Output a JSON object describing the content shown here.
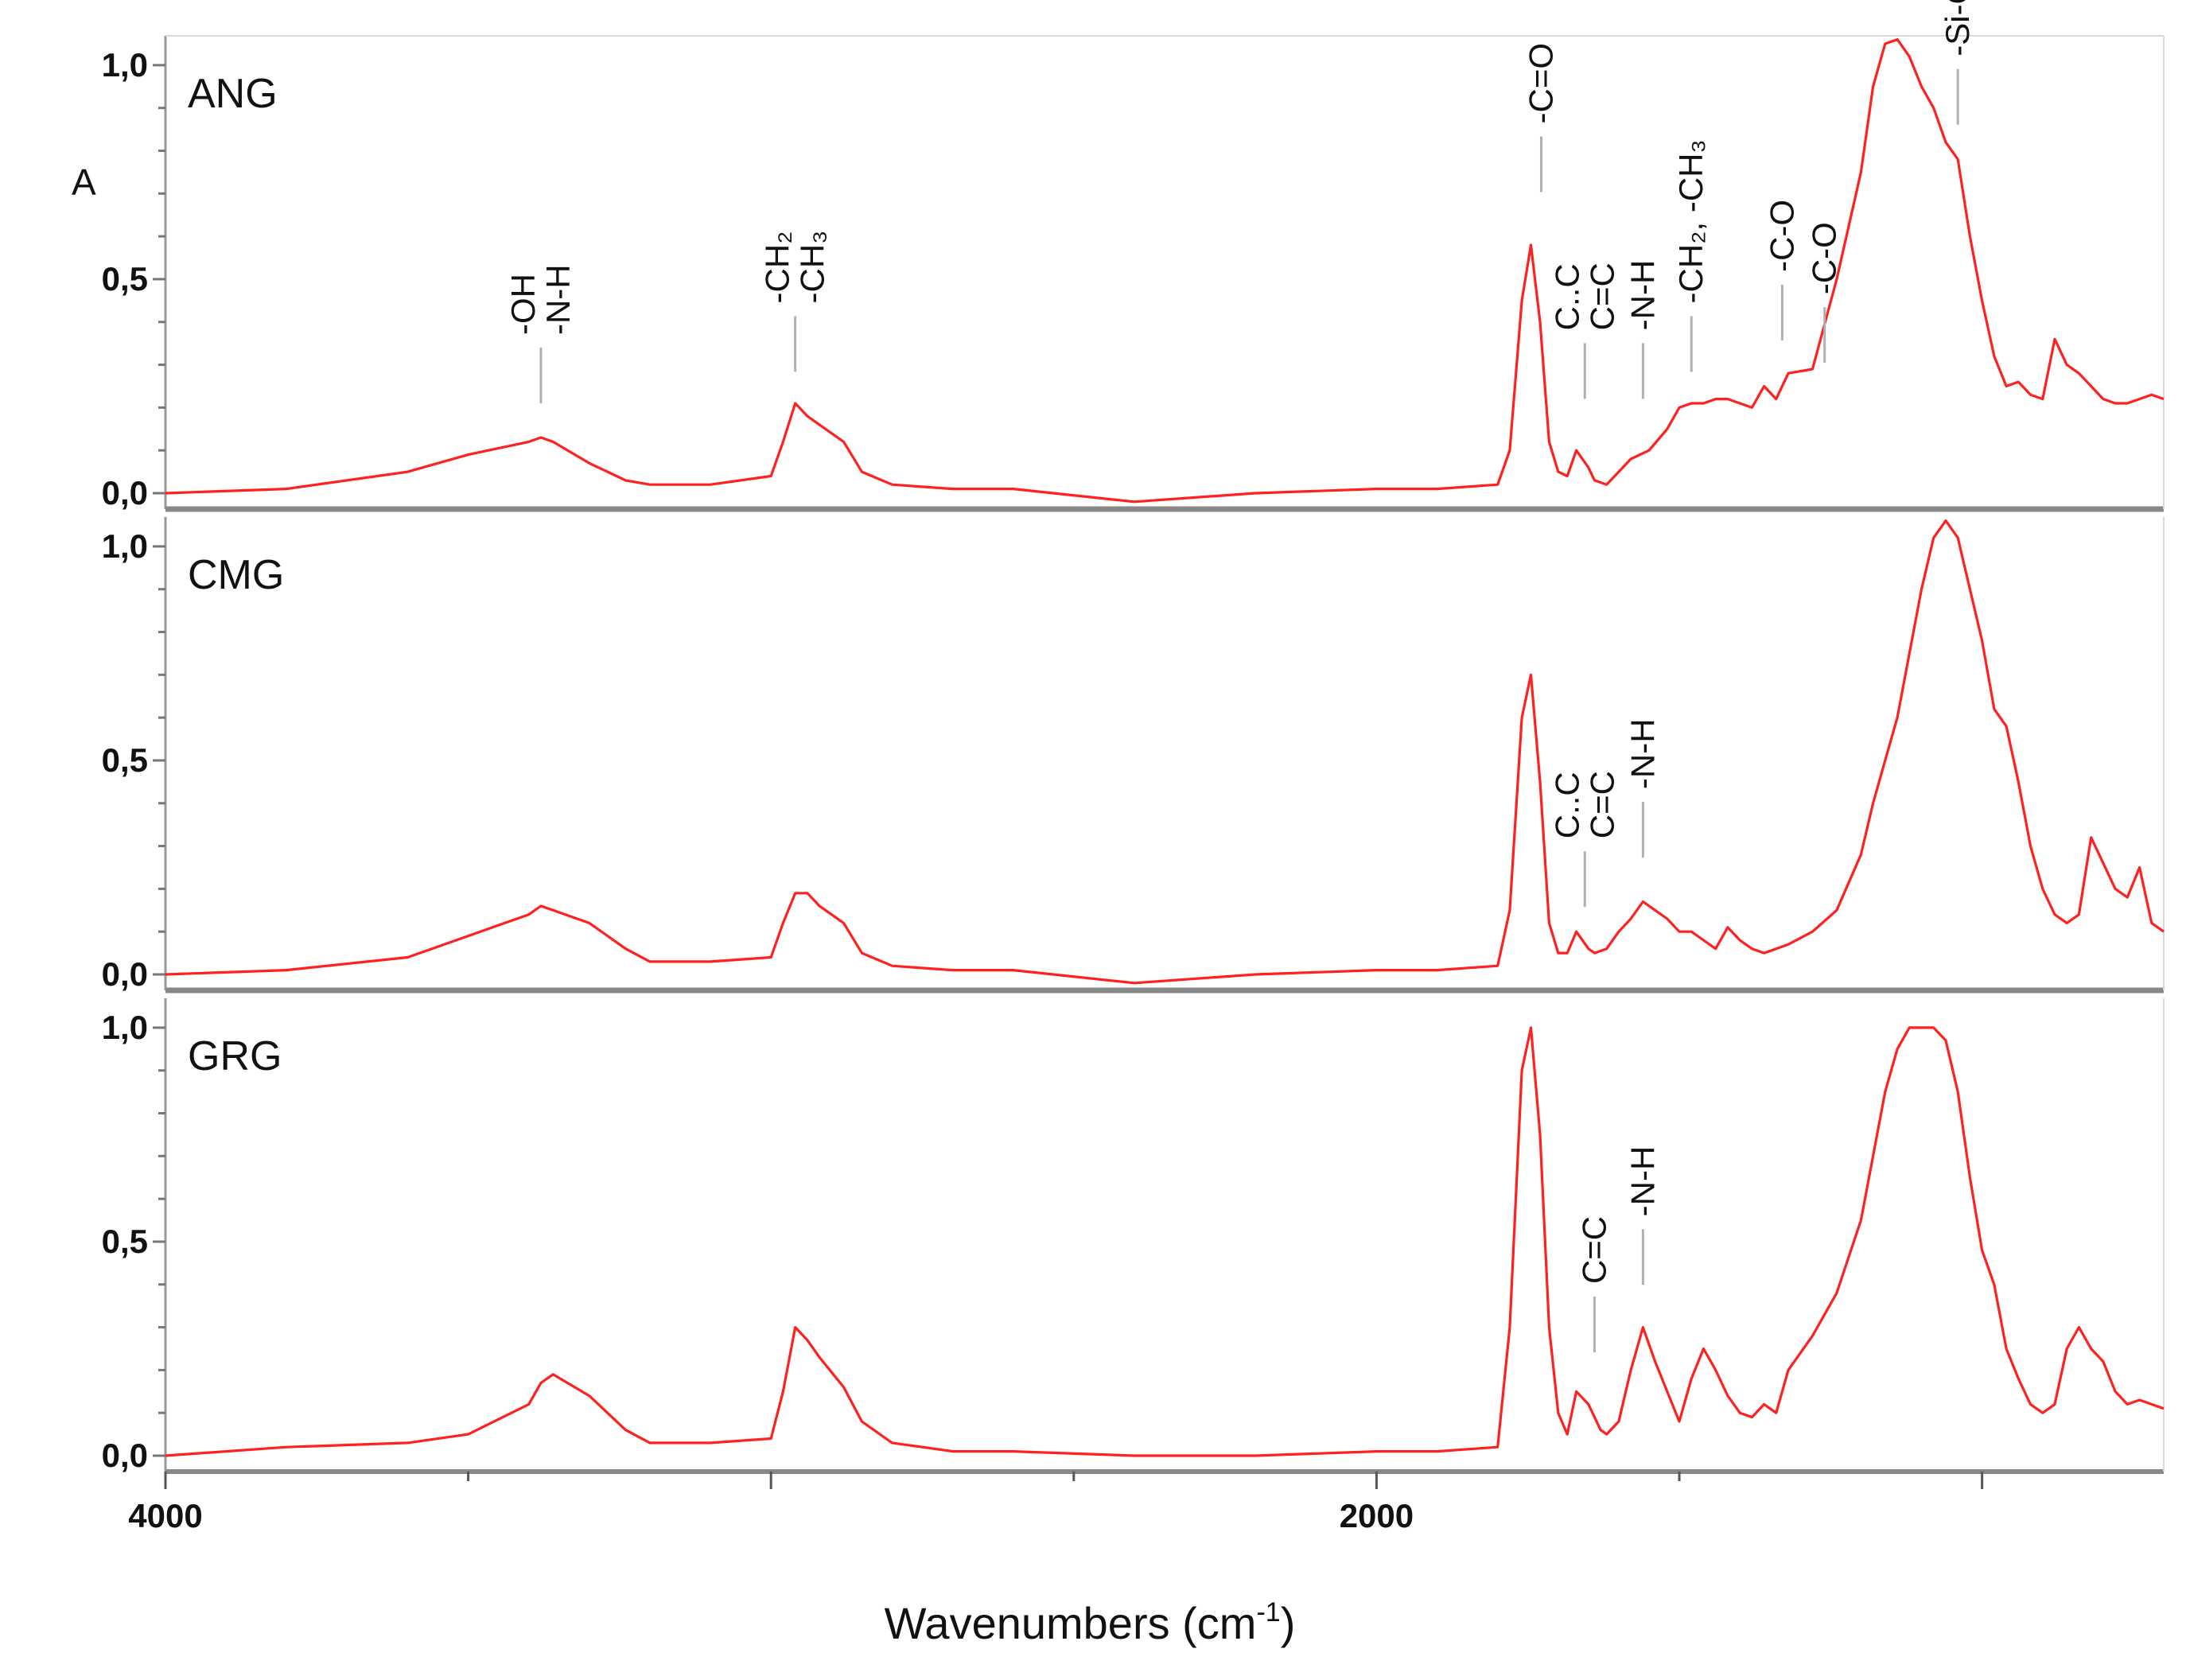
{
  "chart_data": {
    "type": "line",
    "xlabel": "Wavenumbers (cm",
    "xlabel_sup": "-1",
    "xlabel_close": ")",
    "ylabel": "A",
    "x_reversed": true,
    "xlim": [
      4000,
      700
    ],
    "x_ticks": [
      4000,
      2000
    ],
    "line_color": "#ff2020",
    "panels": [
      {
        "label": "ANG",
        "ylim": [
          0,
          1.05
        ],
        "y_ticks": [
          {
            "v": 0,
            "t": "0,0"
          },
          {
            "v": 0.5,
            "t": "0,5"
          },
          {
            "v": 1.0,
            "t": "1,0"
          }
        ],
        "x": [
          4000,
          3800,
          3600,
          3500,
          3400,
          3380,
          3360,
          3300,
          3240,
          3200,
          3100,
          3000,
          2980,
          2960,
          2940,
          2920,
          2880,
          2850,
          2800,
          2700,
          2600,
          2400,
          2200,
          2000,
          1900,
          1800,
          1780,
          1760,
          1745,
          1730,
          1715,
          1700,
          1685,
          1670,
          1650,
          1640,
          1620,
          1600,
          1580,
          1550,
          1520,
          1500,
          1480,
          1460,
          1440,
          1420,
          1400,
          1380,
          1360,
          1340,
          1320,
          1280,
          1240,
          1200,
          1180,
          1160,
          1140,
          1120,
          1100,
          1080,
          1060,
          1040,
          1020,
          1000,
          980,
          960,
          940,
          920,
          900,
          880,
          860,
          840,
          820,
          800,
          780,
          760,
          740,
          720,
          700
        ],
        "y": [
          0.0,
          0.01,
          0.05,
          0.09,
          0.12,
          0.13,
          0.12,
          0.07,
          0.03,
          0.02,
          0.02,
          0.04,
          0.12,
          0.21,
          0.18,
          0.16,
          0.12,
          0.05,
          0.02,
          0.01,
          0.01,
          -0.02,
          0.0,
          0.01,
          0.01,
          0.02,
          0.1,
          0.45,
          0.58,
          0.4,
          0.12,
          0.05,
          0.04,
          0.1,
          0.06,
          0.03,
          0.02,
          0.05,
          0.08,
          0.1,
          0.15,
          0.2,
          0.21,
          0.21,
          0.22,
          0.22,
          0.21,
          0.2,
          0.25,
          0.22,
          0.28,
          0.29,
          0.5,
          0.75,
          0.95,
          1.05,
          1.06,
          1.02,
          0.95,
          0.9,
          0.82,
          0.78,
          0.6,
          0.45,
          0.32,
          0.25,
          0.26,
          0.23,
          0.22,
          0.36,
          0.3,
          0.28,
          0.25,
          0.22,
          0.21,
          0.21,
          0.22,
          0.23,
          0.22
        ]
      },
      {
        "label": "CMG",
        "ylim": [
          0,
          1.05
        ],
        "y_ticks": [
          {
            "v": 0,
            "t": "0,0"
          },
          {
            "v": 0.5,
            "t": "0,5"
          },
          {
            "v": 1.0,
            "t": "1,0"
          }
        ],
        "x": [
          4000,
          3800,
          3600,
          3500,
          3400,
          3380,
          3360,
          3300,
          3240,
          3200,
          3100,
          3000,
          2980,
          2960,
          2940,
          2920,
          2880,
          2850,
          2800,
          2700,
          2600,
          2400,
          2200,
          2000,
          1900,
          1800,
          1780,
          1760,
          1745,
          1730,
          1715,
          1700,
          1685,
          1670,
          1650,
          1640,
          1620,
          1600,
          1580,
          1560,
          1540,
          1520,
          1500,
          1480,
          1460,
          1440,
          1420,
          1400,
          1380,
          1360,
          1340,
          1320,
          1280,
          1240,
          1200,
          1180,
          1160,
          1140,
          1120,
          1100,
          1080,
          1060,
          1040,
          1020,
          1000,
          980,
          960,
          940,
          920,
          900,
          880,
          860,
          840,
          820,
          800,
          780,
          760,
          740,
          720,
          700
        ],
        "y": [
          0.0,
          0.01,
          0.04,
          0.09,
          0.14,
          0.16,
          0.15,
          0.12,
          0.06,
          0.03,
          0.03,
          0.04,
          0.12,
          0.19,
          0.19,
          0.16,
          0.12,
          0.05,
          0.02,
          0.01,
          0.01,
          -0.02,
          0.0,
          0.01,
          0.01,
          0.02,
          0.15,
          0.6,
          0.7,
          0.45,
          0.12,
          0.05,
          0.05,
          0.1,
          0.06,
          0.05,
          0.06,
          0.1,
          0.13,
          0.17,
          0.15,
          0.13,
          0.1,
          0.1,
          0.08,
          0.06,
          0.11,
          0.08,
          0.06,
          0.05,
          0.06,
          0.07,
          0.1,
          0.15,
          0.28,
          0.4,
          0.5,
          0.6,
          0.75,
          0.9,
          1.02,
          1.06,
          1.02,
          0.9,
          0.78,
          0.62,
          0.58,
          0.45,
          0.3,
          0.2,
          0.14,
          0.12,
          0.14,
          0.32,
          0.26,
          0.2,
          0.18,
          0.25,
          0.12,
          0.1
        ]
      },
      {
        "label": "GRG",
        "ylim": [
          0,
          1.05
        ],
        "y_ticks": [
          {
            "v": 0,
            "t": "0,0"
          },
          {
            "v": 0.5,
            "t": "0,5"
          },
          {
            "v": 1.0,
            "t": "1,0"
          }
        ],
        "x": [
          4000,
          3800,
          3600,
          3500,
          3400,
          3380,
          3360,
          3300,
          3240,
          3200,
          3100,
          3000,
          2980,
          2960,
          2940,
          2920,
          2880,
          2850,
          2800,
          2700,
          2600,
          2400,
          2200,
          2000,
          1900,
          1800,
          1780,
          1760,
          1745,
          1730,
          1715,
          1700,
          1685,
          1670,
          1650,
          1630,
          1620,
          1600,
          1580,
          1560,
          1540,
          1520,
          1500,
          1480,
          1460,
          1440,
          1420,
          1400,
          1380,
          1360,
          1340,
          1320,
          1280,
          1240,
          1200,
          1180,
          1160,
          1140,
          1120,
          1100,
          1080,
          1060,
          1040,
          1020,
          1000,
          980,
          960,
          940,
          920,
          900,
          880,
          860,
          840,
          820,
          800,
          780,
          760,
          740,
          720,
          700
        ],
        "y": [
          0.0,
          0.02,
          0.03,
          0.05,
          0.12,
          0.17,
          0.19,
          0.14,
          0.06,
          0.03,
          0.03,
          0.04,
          0.15,
          0.3,
          0.27,
          0.23,
          0.16,
          0.08,
          0.03,
          0.01,
          0.01,
          0.0,
          0.0,
          0.01,
          0.01,
          0.02,
          0.3,
          0.9,
          1.0,
          0.75,
          0.3,
          0.1,
          0.05,
          0.15,
          0.12,
          0.06,
          0.05,
          0.08,
          0.2,
          0.3,
          0.22,
          0.15,
          0.08,
          0.18,
          0.25,
          0.2,
          0.14,
          0.1,
          0.09,
          0.12,
          0.1,
          0.2,
          0.28,
          0.38,
          0.55,
          0.7,
          0.85,
          0.95,
          1.0,
          1.0,
          1.0,
          0.97,
          0.85,
          0.65,
          0.48,
          0.4,
          0.25,
          0.18,
          0.12,
          0.1,
          0.12,
          0.25,
          0.3,
          0.25,
          0.22,
          0.15,
          0.12,
          0.13,
          0.12,
          0.11
        ]
      }
    ],
    "annotations": [
      {
        "panel": 0,
        "x": 3380,
        "y_frac": 0.2,
        "text": [
          "-OH",
          "-N-H"
        ]
      },
      {
        "panel": 0,
        "x": 2960,
        "y_frac": 0.27,
        "text": [
          "-CH₂",
          "-CH₃"
        ]
      },
      {
        "panel": 0,
        "x": 1728,
        "y_frac": 0.67,
        "text": [
          "-C=O"
        ]
      },
      {
        "panel": 0,
        "x": 1656,
        "y_frac": 0.21,
        "text": [
          "C..C",
          "C=C"
        ]
      },
      {
        "panel": 0,
        "x": 1560,
        "y_frac": 0.21,
        "text": [
          "-N-H"
        ]
      },
      {
        "panel": 0,
        "x": 1480,
        "y_frac": 0.27,
        "text": [
          "-CH₂, -CH₃"
        ]
      },
      {
        "panel": 0,
        "x": 1330,
        "y_frac": 0.34,
        "text": [
          "-C-O"
        ]
      },
      {
        "panel": 0,
        "x": 1260,
        "y_frac": 0.29,
        "text": [
          "-C-O"
        ]
      },
      {
        "panel": 0,
        "x": 1040,
        "y_frac": 0.82,
        "text": [
          "-Si-O-Si"
        ]
      },
      {
        "panel": 1,
        "x": 1656,
        "y_frac": 0.15,
        "text": [
          "C..C",
          "C=C"
        ]
      },
      {
        "panel": 1,
        "x": 1560,
        "y_frac": 0.26,
        "text": [
          "-N-H"
        ]
      },
      {
        "panel": 2,
        "x": 1640,
        "y_frac": 0.23,
        "text": [
          "C=C"
        ]
      },
      {
        "panel": 2,
        "x": 1560,
        "y_frac": 0.38,
        "text": [
          "-N-H"
        ]
      }
    ]
  }
}
